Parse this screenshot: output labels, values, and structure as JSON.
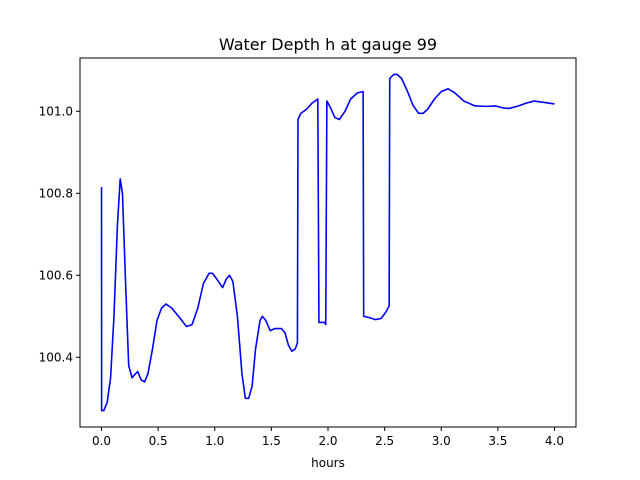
{
  "chart_data": {
    "type": "line",
    "title": "Water Depth h at gauge 99",
    "xlabel": "hours",
    "ylabel": "",
    "xlim": [
      -0.19,
      4.19
    ],
    "ylim": [
      100.23,
      101.13
    ],
    "xticks": [
      0.0,
      0.5,
      1.0,
      1.5,
      2.0,
      2.5,
      3.0,
      3.5,
      4.0
    ],
    "xtick_labels": [
      "0.0",
      "0.5",
      "1.0",
      "1.5",
      "2.0",
      "2.5",
      "3.0",
      "3.5",
      "4.0"
    ],
    "yticks": [
      100.4,
      100.6,
      100.8,
      101.0
    ],
    "ytick_labels": [
      "100.4",
      "100.6",
      "100.8",
      "101.0"
    ],
    "grid": false,
    "series": [
      {
        "color": "#0000ff",
        "points": [
          [
            0.0,
            100.815
          ],
          [
            0.001,
            100.27
          ],
          [
            0.02,
            100.27
          ],
          [
            0.05,
            100.29
          ],
          [
            0.08,
            100.35
          ],
          [
            0.11,
            100.5
          ],
          [
            0.14,
            100.72
          ],
          [
            0.165,
            100.835
          ],
          [
            0.185,
            100.8
          ],
          [
            0.21,
            100.6
          ],
          [
            0.24,
            100.38
          ],
          [
            0.27,
            100.35
          ],
          [
            0.3,
            100.36
          ],
          [
            0.32,
            100.365
          ],
          [
            0.35,
            100.345
          ],
          [
            0.38,
            100.34
          ],
          [
            0.41,
            100.36
          ],
          [
            0.45,
            100.42
          ],
          [
            0.49,
            100.49
          ],
          [
            0.53,
            100.52
          ],
          [
            0.57,
            100.53
          ],
          [
            0.62,
            100.52
          ],
          [
            0.68,
            100.5
          ],
          [
            0.75,
            100.475
          ],
          [
            0.8,
            100.48
          ],
          [
            0.85,
            100.52
          ],
          [
            0.9,
            100.58
          ],
          [
            0.95,
            100.605
          ],
          [
            0.98,
            100.605
          ],
          [
            1.02,
            100.59
          ],
          [
            1.07,
            100.57
          ],
          [
            1.1,
            100.59
          ],
          [
            1.13,
            100.6
          ],
          [
            1.16,
            100.585
          ],
          [
            1.2,
            100.5
          ],
          [
            1.24,
            100.36
          ],
          [
            1.27,
            100.3
          ],
          [
            1.3,
            100.3
          ],
          [
            1.33,
            100.33
          ],
          [
            1.36,
            100.42
          ],
          [
            1.4,
            100.49
          ],
          [
            1.42,
            100.5
          ],
          [
            1.45,
            100.49
          ],
          [
            1.49,
            100.465
          ],
          [
            1.53,
            100.47
          ],
          [
            1.59,
            100.47
          ],
          [
            1.62,
            100.46
          ],
          [
            1.65,
            100.43
          ],
          [
            1.68,
            100.415
          ],
          [
            1.71,
            100.42
          ],
          [
            1.73,
            100.435
          ],
          [
            1.735,
            100.98
          ],
          [
            1.76,
            100.995
          ],
          [
            1.81,
            101.005
          ],
          [
            1.86,
            101.02
          ],
          [
            1.91,
            101.03
          ],
          [
            1.92,
            100.485
          ],
          [
            1.97,
            100.485
          ],
          [
            1.98,
            100.48
          ],
          [
            1.99,
            101.025
          ],
          [
            2.02,
            101.01
          ],
          [
            2.06,
            100.985
          ],
          [
            2.1,
            100.98
          ],
          [
            2.15,
            101.0
          ],
          [
            2.2,
            101.03
          ],
          [
            2.26,
            101.045
          ],
          [
            2.31,
            101.048
          ],
          [
            2.315,
            100.5
          ],
          [
            2.36,
            100.497
          ],
          [
            2.42,
            100.492
          ],
          [
            2.47,
            100.495
          ],
          [
            2.51,
            100.51
          ],
          [
            2.54,
            100.525
          ],
          [
            2.545,
            101.08
          ],
          [
            2.58,
            101.09
          ],
          [
            2.61,
            101.09
          ],
          [
            2.65,
            101.08
          ],
          [
            2.7,
            101.05
          ],
          [
            2.75,
            101.015
          ],
          [
            2.8,
            100.995
          ],
          [
            2.84,
            100.995
          ],
          [
            2.88,
            101.005
          ],
          [
            2.94,
            101.03
          ],
          [
            3.0,
            101.048
          ],
          [
            3.06,
            101.055
          ],
          [
            3.12,
            101.045
          ],
          [
            3.2,
            101.025
          ],
          [
            3.3,
            101.013
          ],
          [
            3.4,
            101.012
          ],
          [
            3.48,
            101.013
          ],
          [
            3.55,
            101.008
          ],
          [
            3.6,
            101.007
          ],
          [
            3.68,
            101.013
          ],
          [
            3.75,
            101.02
          ],
          [
            3.82,
            101.025
          ],
          [
            3.9,
            101.022
          ],
          [
            4.0,
            101.018
          ]
        ]
      }
    ]
  }
}
